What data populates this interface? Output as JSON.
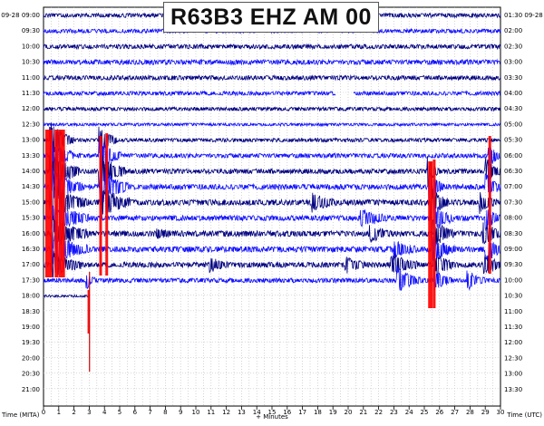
{
  "chart_data": {
    "type": "line",
    "title": "R63B3 EHZ AM 00",
    "date_label": "09-28",
    "xlabel": "+ Minutes",
    "ylabel_left": "Time (MITA)",
    "ylabel_right": "Time (UTC)",
    "xlim": [
      0,
      30
    ],
    "x_ticks": [
      "0",
      "1",
      "2",
      "3",
      "4",
      "5",
      "6",
      "7",
      "8",
      "9",
      "10",
      "11",
      "12",
      "13",
      "14",
      "15",
      "16",
      "17",
      "18",
      "19",
      "20",
      "21",
      "22",
      "23",
      "24",
      "25",
      "26",
      "27",
      "28",
      "29",
      "30"
    ],
    "left_times": [
      "09:00",
      "09:30",
      "10:00",
      "10:30",
      "11:00",
      "11:30",
      "12:00",
      "12:30",
      "13:00",
      "13:30",
      "14:00",
      "14:30",
      "15:00",
      "15:30",
      "16:00",
      "16:30",
      "17:00",
      "17:30",
      "18:00",
      "18:30",
      "19:00",
      "19:30",
      "20:00",
      "20:30",
      "21:00"
    ],
    "right_times": [
      "01:30",
      "02:00",
      "02:30",
      "03:00",
      "03:30",
      "04:00",
      "04:30",
      "05:00",
      "05:30",
      "06:00",
      "06:30",
      "07:00",
      "07:30",
      "08:00",
      "08:30",
      "09:00",
      "09:30",
      "10:00",
      "10:30",
      "11:00",
      "11:30",
      "12:00",
      "12:30",
      "13:00",
      "13:30"
    ],
    "traces": [
      {
        "row": 0,
        "end": 30,
        "noise": 1.0,
        "events": []
      },
      {
        "row": 1,
        "end": 30,
        "noise": 1.0,
        "events": []
      },
      {
        "row": 2,
        "end": 30,
        "noise": 1.1,
        "events": []
      },
      {
        "row": 3,
        "end": 30,
        "noise": 1.2,
        "events": []
      },
      {
        "row": 4,
        "end": 30,
        "noise": 1.1,
        "events": []
      },
      {
        "row": 5,
        "end": 30,
        "noise": 1.0,
        "events": [],
        "gaps": [
          [
            19.2,
            20.4
          ]
        ]
      },
      {
        "row": 6,
        "end": 30,
        "noise": 0.9,
        "events": []
      },
      {
        "row": 7,
        "end": 30,
        "noise": 0.7,
        "events": []
      },
      {
        "row": 8,
        "end": 30,
        "noise": 0.9,
        "events": [
          {
            "t": 0.4,
            "amp": 22,
            "dur": 1.6
          },
          {
            "t": 3.6,
            "amp": 16,
            "dur": 1.2
          }
        ]
      },
      {
        "row": 9,
        "end": 30,
        "noise": 1.1,
        "events": [
          {
            "t": 0.4,
            "amp": 20,
            "dur": 1.6
          },
          {
            "t": 3.6,
            "amp": 18,
            "dur": 1.5
          },
          {
            "t": 29.2,
            "amp": 12,
            "dur": 0.8
          }
        ]
      },
      {
        "row": 10,
        "end": 30,
        "noise": 1.2,
        "events": [
          {
            "t": 0.4,
            "amp": 22,
            "dur": 2.0
          },
          {
            "t": 3.6,
            "amp": 20,
            "dur": 1.8
          },
          {
            "t": 25.2,
            "amp": 14,
            "dur": 0.8
          },
          {
            "t": 29.0,
            "amp": 14,
            "dur": 1.0
          }
        ]
      },
      {
        "row": 11,
        "end": 30,
        "noise": 1.3,
        "events": [
          {
            "t": 0.4,
            "amp": 20,
            "dur": 2.2
          },
          {
            "t": 3.7,
            "amp": 18,
            "dur": 2.0
          },
          {
            "t": 25.3,
            "amp": 16,
            "dur": 1.0
          },
          {
            "t": 29.0,
            "amp": 14,
            "dur": 1.0
          }
        ]
      },
      {
        "row": 12,
        "end": 30,
        "noise": 1.4,
        "events": [
          {
            "t": 0.5,
            "amp": 18,
            "dur": 2.5
          },
          {
            "t": 3.8,
            "amp": 16,
            "dur": 2.0
          },
          {
            "t": 17.6,
            "amp": 9,
            "dur": 1.6
          },
          {
            "t": 25.4,
            "amp": 16,
            "dur": 1.2
          },
          {
            "t": 28.6,
            "amp": 10,
            "dur": 1.2
          }
        ]
      },
      {
        "row": 13,
        "end": 30,
        "noise": 1.3,
        "events": [
          {
            "t": 0.5,
            "amp": 16,
            "dur": 2.5
          },
          {
            "t": 20.8,
            "amp": 10,
            "dur": 1.8
          },
          {
            "t": 25.5,
            "amp": 16,
            "dur": 1.4
          },
          {
            "t": 29.0,
            "amp": 12,
            "dur": 1.0
          }
        ]
      },
      {
        "row": 14,
        "end": 30,
        "noise": 1.4,
        "events": [
          {
            "t": 0.5,
            "amp": 18,
            "dur": 2.5
          },
          {
            "t": 7.4,
            "amp": 5,
            "dur": 1.0
          },
          {
            "t": 21.4,
            "amp": 8,
            "dur": 1.6
          },
          {
            "t": 25.5,
            "amp": 16,
            "dur": 1.4
          },
          {
            "t": 28.8,
            "amp": 12,
            "dur": 1.4
          }
        ]
      },
      {
        "row": 15,
        "end": 30,
        "noise": 1.4,
        "events": [
          {
            "t": 0.5,
            "amp": 16,
            "dur": 2.5
          },
          {
            "t": 23.0,
            "amp": 9,
            "dur": 1.5
          },
          {
            "t": 25.5,
            "amp": 15,
            "dur": 1.5
          },
          {
            "t": 29.0,
            "amp": 14,
            "dur": 1.2
          }
        ]
      },
      {
        "row": 16,
        "end": 30,
        "noise": 1.3,
        "events": [
          {
            "t": 0.5,
            "amp": 14,
            "dur": 2.0
          },
          {
            "t": 10.9,
            "amp": 8,
            "dur": 1.2
          },
          {
            "t": 19.8,
            "amp": 8,
            "dur": 1.4
          },
          {
            "t": 22.8,
            "amp": 12,
            "dur": 1.8
          },
          {
            "t": 25.6,
            "amp": 14,
            "dur": 1.4
          },
          {
            "t": 28.9,
            "amp": 12,
            "dur": 1.2
          }
        ]
      },
      {
        "row": 17,
        "end": 30,
        "noise": 1.1,
        "events": [
          {
            "t": 2.8,
            "amp": 8,
            "dur": 0.6
          },
          {
            "t": 23.2,
            "amp": 14,
            "dur": 1.6
          },
          {
            "t": 25.6,
            "amp": 12,
            "dur": 1.2
          },
          {
            "t": 27.8,
            "amp": 10,
            "dur": 1.2
          }
        ]
      },
      {
        "row": 18,
        "end": 3.0,
        "noise": 0.6,
        "events": []
      }
    ],
    "red_spikes": [
      {
        "t": 0.35,
        "top": 143,
        "bottom": 306,
        "width": 8
      },
      {
        "t": 0.85,
        "top": 143,
        "bottom": 306,
        "width": 4
      },
      {
        "t": 1.2,
        "top": 143,
        "bottom": 306,
        "width": 7
      },
      {
        "t": 3.75,
        "top": 150,
        "bottom": 304,
        "width": 3
      },
      {
        "t": 4.15,
        "top": 147,
        "bottom": 304,
        "width": 3
      },
      {
        "t": 2.95,
        "top": 320,
        "bottom": 368,
        "width": 2
      },
      {
        "t": 25.4,
        "top": 178,
        "bottom": 340,
        "width": 5
      },
      {
        "t": 25.65,
        "top": 176,
        "bottom": 340,
        "width": 3
      },
      {
        "t": 29.3,
        "top": 150,
        "bottom": 302,
        "width": 3
      }
    ],
    "annotations": [
      {
        "t": 3.05,
        "label": ""
      }
    ],
    "grid": true
  }
}
